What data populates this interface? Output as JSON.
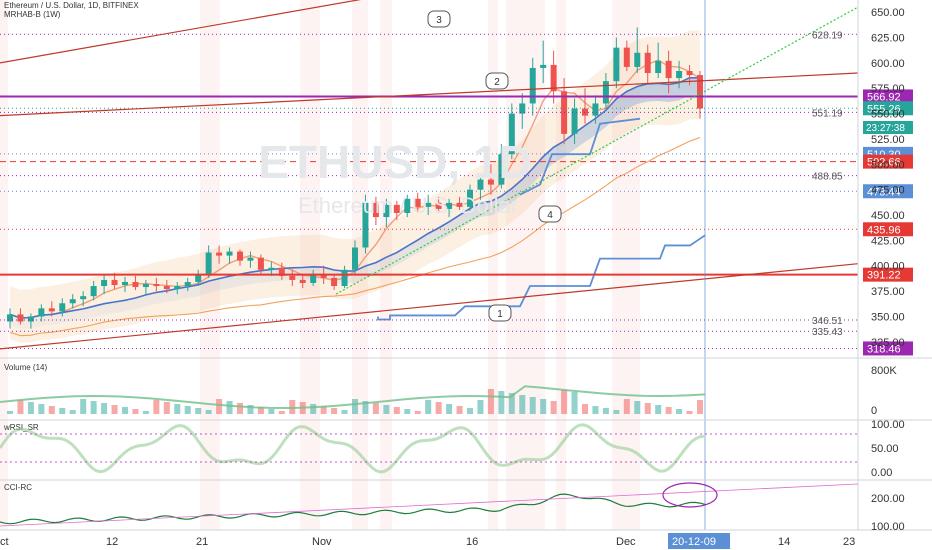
{
  "header": {
    "title": "Ethereum / U.S. Dollar, 1D, BITFINEX",
    "indicator": "MRHAB-B (1W)"
  },
  "watermark": {
    "symbol": "ETHUSD, 1D",
    "name": "Ethereum / U.S. Dollar"
  },
  "chart_data": {
    "type": "candlestick",
    "price_axis": {
      "ticks": [
        650,
        625,
        600,
        575,
        550,
        525,
        500,
        475,
        450,
        425,
        400,
        375,
        350,
        325
      ],
      "tick_labels": [
        "650.00",
        "625.00",
        "600.00",
        "575.00",
        "550.00",
        "525.00",
        "500.00",
        "475.00",
        "450.00",
        "425.00",
        "400.00",
        "375.00",
        "350.00",
        "325.00"
      ]
    },
    "x_axis": {
      "labels": [
        "ct",
        "12",
        "21",
        "Nov",
        "16",
        "Dec",
        "20-12-09",
        "14",
        "23"
      ],
      "highlighted": "20-12-09"
    },
    "candles": [
      {
        "o": 345,
        "h": 358,
        "l": 338,
        "c": 352
      },
      {
        "o": 352,
        "h": 358,
        "l": 342,
        "c": 345
      },
      {
        "o": 345,
        "h": 353,
        "l": 338,
        "c": 350
      },
      {
        "o": 350,
        "h": 362,
        "l": 345,
        "c": 358
      },
      {
        "o": 358,
        "h": 365,
        "l": 350,
        "c": 355
      },
      {
        "o": 355,
        "h": 368,
        "l": 350,
        "c": 363
      },
      {
        "o": 363,
        "h": 372,
        "l": 358,
        "c": 367
      },
      {
        "o": 367,
        "h": 375,
        "l": 360,
        "c": 370
      },
      {
        "o": 370,
        "h": 385,
        "l": 366,
        "c": 380
      },
      {
        "o": 380,
        "h": 392,
        "l": 372,
        "c": 386
      },
      {
        "o": 386,
        "h": 393,
        "l": 377,
        "c": 381
      },
      {
        "o": 381,
        "h": 389,
        "l": 374,
        "c": 384
      },
      {
        "o": 384,
        "h": 390,
        "l": 376,
        "c": 379
      },
      {
        "o": 379,
        "h": 386,
        "l": 372,
        "c": 382
      },
      {
        "o": 382,
        "h": 388,
        "l": 375,
        "c": 380
      },
      {
        "o": 380,
        "h": 386,
        "l": 373,
        "c": 377
      },
      {
        "o": 377,
        "h": 384,
        "l": 372,
        "c": 380
      },
      {
        "o": 380,
        "h": 388,
        "l": 375,
        "c": 384
      },
      {
        "o": 384,
        "h": 396,
        "l": 380,
        "c": 392
      },
      {
        "o": 392,
        "h": 420,
        "l": 388,
        "c": 413
      },
      {
        "o": 413,
        "h": 420,
        "l": 402,
        "c": 410
      },
      {
        "o": 410,
        "h": 418,
        "l": 402,
        "c": 414
      },
      {
        "o": 414,
        "h": 416,
        "l": 400,
        "c": 405
      },
      {
        "o": 405,
        "h": 414,
        "l": 398,
        "c": 408
      },
      {
        "o": 408,
        "h": 411,
        "l": 392,
        "c": 396
      },
      {
        "o": 396,
        "h": 404,
        "l": 390,
        "c": 398
      },
      {
        "o": 398,
        "h": 403,
        "l": 386,
        "c": 390
      },
      {
        "o": 390,
        "h": 396,
        "l": 380,
        "c": 386
      },
      {
        "o": 386,
        "h": 392,
        "l": 378,
        "c": 383
      },
      {
        "o": 383,
        "h": 396,
        "l": 380,
        "c": 392
      },
      {
        "o": 392,
        "h": 400,
        "l": 382,
        "c": 388
      },
      {
        "o": 388,
        "h": 392,
        "l": 376,
        "c": 380
      },
      {
        "o": 380,
        "h": 400,
        "l": 378,
        "c": 396
      },
      {
        "o": 396,
        "h": 425,
        "l": 392,
        "c": 418
      },
      {
        "o": 418,
        "h": 470,
        "l": 412,
        "c": 462
      },
      {
        "o": 462,
        "h": 468,
        "l": 440,
        "c": 448
      },
      {
        "o": 448,
        "h": 466,
        "l": 438,
        "c": 460
      },
      {
        "o": 460,
        "h": 464,
        "l": 445,
        "c": 452
      },
      {
        "o": 452,
        "h": 470,
        "l": 448,
        "c": 466
      },
      {
        "o": 466,
        "h": 472,
        "l": 452,
        "c": 458
      },
      {
        "o": 458,
        "h": 470,
        "l": 450,
        "c": 462
      },
      {
        "o": 462,
        "h": 468,
        "l": 452,
        "c": 456
      },
      {
        "o": 456,
        "h": 466,
        "l": 448,
        "c": 462
      },
      {
        "o": 462,
        "h": 468,
        "l": 455,
        "c": 458
      },
      {
        "o": 458,
        "h": 480,
        "l": 454,
        "c": 475
      },
      {
        "o": 475,
        "h": 490,
        "l": 465,
        "c": 485
      },
      {
        "o": 485,
        "h": 500,
        "l": 470,
        "c": 480
      },
      {
        "o": 480,
        "h": 520,
        "l": 476,
        "c": 510
      },
      {
        "o": 510,
        "h": 560,
        "l": 505,
        "c": 550
      },
      {
        "o": 550,
        "h": 570,
        "l": 535,
        "c": 560
      },
      {
        "o": 560,
        "h": 605,
        "l": 548,
        "c": 595
      },
      {
        "o": 595,
        "h": 622,
        "l": 580,
        "c": 598
      },
      {
        "o": 598,
        "h": 612,
        "l": 560,
        "c": 572
      },
      {
        "o": 572,
        "h": 585,
        "l": 520,
        "c": 530
      },
      {
        "o": 530,
        "h": 565,
        "l": 520,
        "c": 555
      },
      {
        "o": 555,
        "h": 575,
        "l": 540,
        "c": 548
      },
      {
        "o": 548,
        "h": 568,
        "l": 540,
        "c": 560
      },
      {
        "o": 560,
        "h": 590,
        "l": 555,
        "c": 582
      },
      {
        "o": 582,
        "h": 625,
        "l": 575,
        "c": 615
      },
      {
        "o": 615,
        "h": 622,
        "l": 592,
        "c": 596
      },
      {
        "o": 596,
        "h": 635,
        "l": 590,
        "c": 610
      },
      {
        "o": 610,
        "h": 618,
        "l": 580,
        "c": 590
      },
      {
        "o": 590,
        "h": 620,
        "l": 585,
        "c": 602
      },
      {
        "o": 602,
        "h": 612,
        "l": 570,
        "c": 585
      },
      {
        "o": 585,
        "h": 602,
        "l": 575,
        "c": 592
      },
      {
        "o": 592,
        "h": 598,
        "l": 578,
        "c": 588
      },
      {
        "o": 588,
        "h": 592,
        "l": 545,
        "c": 555
      }
    ],
    "price_labels": [
      {
        "value": 628.19,
        "text": "628.19",
        "style": "dotted",
        "color": "#9c27b0",
        "boxed": false
      },
      {
        "value": 566.92,
        "text": "566.92",
        "style": "solid",
        "color": "#9c27b0",
        "boxed": true
      },
      {
        "value": 555.26,
        "text": "555.26",
        "style": "dotted",
        "color": "#26a69a",
        "boxed": true
      },
      {
        "value": 551.19,
        "text": "551.19",
        "style": "dotted",
        "color": "#9c27b0",
        "boxed": false
      },
      {
        "value": 510.3,
        "text": "510.30",
        "style": "dotted",
        "color": "#5b8fd6",
        "boxed": true
      },
      {
        "value": 502.66,
        "text": "502.66",
        "style": "dashed",
        "color": "#e53935",
        "boxed": true
      },
      {
        "value": 488.85,
        "text": "488.85",
        "style": "dotted",
        "color": "#9c27b0",
        "boxed": false
      },
      {
        "value": 473.44,
        "text": "473.44",
        "style": "dotted",
        "color": "#5b8fd6",
        "boxed": true
      },
      {
        "value": 435.96,
        "text": "435.96",
        "style": "dotted",
        "color": "#e53935",
        "boxed": true
      },
      {
        "value": 391.22,
        "text": "391.22",
        "style": "solid",
        "color": "#e53935",
        "boxed": true
      },
      {
        "value": 346.51,
        "text": "346.51",
        "style": "dotted",
        "color": "#9c27b0",
        "boxed": false
      },
      {
        "value": 335.43,
        "text": "335.43",
        "style": "dotted",
        "color": "#9c27b0",
        "boxed": false
      },
      {
        "value": 318.46,
        "text": "318.46",
        "style": "dotted",
        "color": "#9c27b0",
        "boxed": true
      }
    ],
    "countdown": "23:27:38",
    "callouts": [
      "1",
      "2",
      "3",
      "4"
    ],
    "panels": [
      {
        "name": "Volume (14)",
        "ticks": [
          "800K",
          "0"
        ]
      },
      {
        "name": "wRSI_SR",
        "ticks": [
          "100.00",
          "50.00",
          "0.00"
        ]
      },
      {
        "name": "CCI-RC",
        "ticks": [
          "200.00",
          "100.00"
        ]
      }
    ]
  },
  "colors": {
    "up": "#26a69a",
    "down": "#ef5350",
    "purple": "#9c27b0",
    "red": "#e53935",
    "blue": "#5b8fd6",
    "green": "#2ecc40",
    "orange": "#f5a05a"
  }
}
